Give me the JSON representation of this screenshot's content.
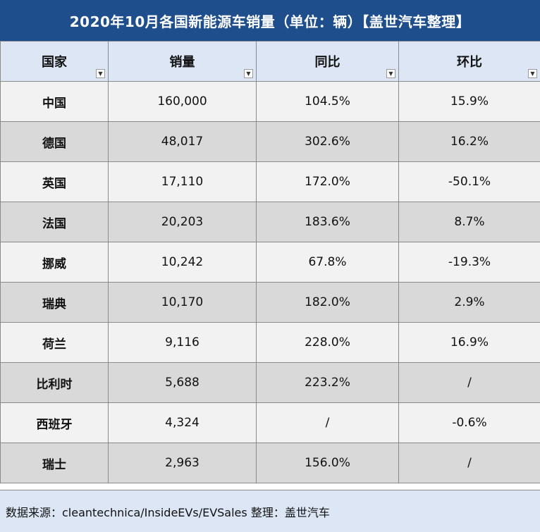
{
  "title": "2020年10月各国新能源车销量（单位：辆）【盖世汽车整理】",
  "headers": [
    "国家",
    "销量",
    "同比",
    "环比"
  ],
  "filter_icon": "chevron-down-icon",
  "rows": [
    {
      "country": "中国",
      "sales": "160,000",
      "yoy": "104.5%",
      "mom": "15.9%",
      "mom_negative": false
    },
    {
      "country": "德国",
      "sales": "48,017",
      "yoy": "302.6%",
      "mom": "16.2%",
      "mom_negative": false
    },
    {
      "country": "英国",
      "sales": "17,110",
      "yoy": "172.0%",
      "mom": "-50.1%",
      "mom_negative": true
    },
    {
      "country": "法国",
      "sales": "20,203",
      "yoy": "183.6%",
      "mom": "8.7%",
      "mom_negative": false
    },
    {
      "country": "挪威",
      "sales": "10,242",
      "yoy": "67.8%",
      "mom": "-19.3%",
      "mom_negative": true
    },
    {
      "country": "瑞典",
      "sales": "10,170",
      "yoy": "182.0%",
      "mom": "2.9%",
      "mom_negative": false
    },
    {
      "country": "荷兰",
      "sales": "9,116",
      "yoy": "228.0%",
      "mom": "16.9%",
      "mom_negative": false
    },
    {
      "country": "比利时",
      "sales": "5,688",
      "yoy": "223.2%",
      "mom": "/",
      "mom_negative": false
    },
    {
      "country": "西班牙",
      "sales": "4,324",
      "yoy": "/",
      "mom": "-0.6%",
      "mom_negative": true
    },
    {
      "country": "瑞士",
      "sales": "2,963",
      "yoy": "156.0%",
      "mom": "/",
      "mom_negative": false
    }
  ],
  "footer": "数据来源：cleantechnica/InsideEVs/EVSales 整理：盖世汽车",
  "colors": {
    "title_bg": "#1f4e8c",
    "header_bg": "#dce6f5",
    "row_odd": "#f2f2f2",
    "row_even": "#d9d9d9",
    "negative": "#e00000"
  }
}
